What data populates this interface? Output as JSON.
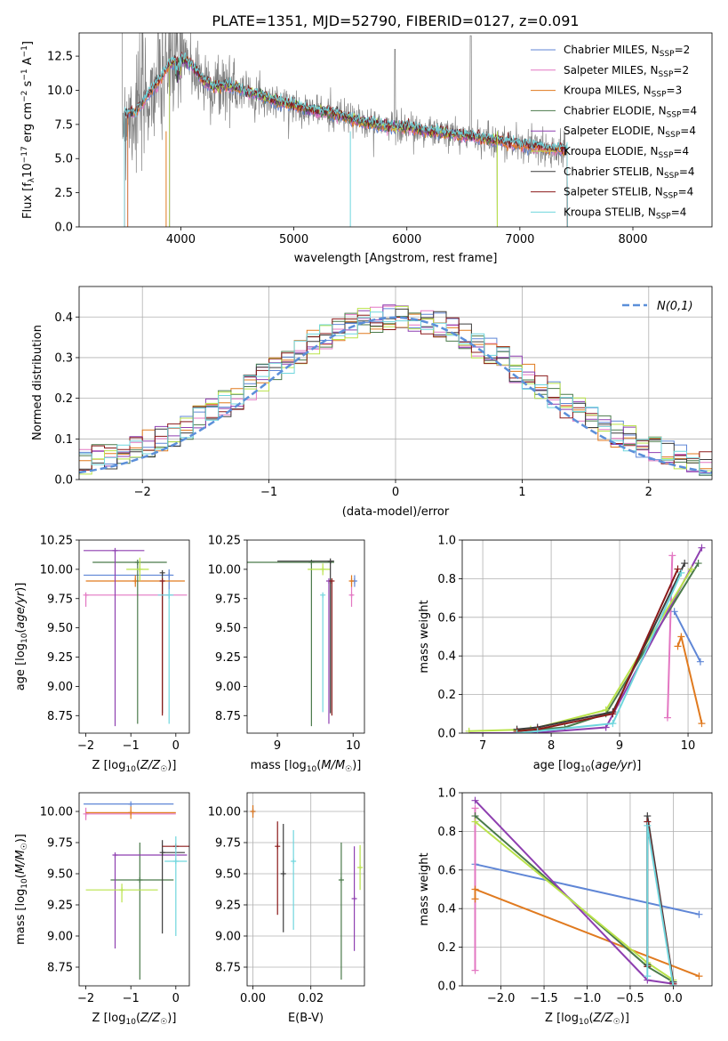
{
  "title": "PLATE=1351, MJD=52790, FIBERID=0127, z=0.091",
  "colors": {
    "Chabrier MILES": "#5f86d6",
    "Salpeter MILES": "#e377c2",
    "Kroupa MILES": "#e07a1f",
    "Chabrier ELODIE": "#4a7a4a",
    "Salpeter ELODIE": "#8e3fb0",
    "Kroupa ELODIE": "#b9e34a",
    "Chabrier STELIB": "#3c3c3c",
    "Salpeter STELIB": "#8b1a1a",
    "Kroupa STELIB": "#6fd6dd",
    "data": "#808080"
  },
  "chart_data": [
    {
      "id": "spectrum",
      "type": "line",
      "title": "PLATE=1351, MJD=52790, FIBERID=0127, z=0.091",
      "xlabel": "wavelength [Angstrom, rest frame]",
      "ylabel": "Flux [f_λ 10^-17 erg cm^-2 s^-1 A^-1]",
      "xlim": [
        3100,
        8700
      ],
      "ylim": [
        0,
        14.2
      ],
      "xticks": [
        4000,
        5000,
        6000,
        7000,
        8000
      ],
      "yticks": [
        0.0,
        2.5,
        5.0,
        7.5,
        10.0,
        12.5
      ],
      "legend_position": "top-right",
      "legend": [
        {
          "label": "Chabrier MILES, N",
          "sub": "SSP",
          "n": "=2"
        },
        {
          "label": "Salpeter MILES, N",
          "sub": "SSP",
          "n": "=2"
        },
        {
          "label": "Kroupa MILES, N",
          "sub": "SSP",
          "n": "=3"
        },
        {
          "label": "Chabrier ELODIE, N",
          "sub": "SSP",
          "n": "=4"
        },
        {
          "label": "Salpeter ELODIE, N",
          "sub": "SSP",
          "n": "=4"
        },
        {
          "label": "Kroupa ELODIE, N",
          "sub": "SSP",
          "n": "=4"
        },
        {
          "label": "Chabrier STELIB, N",
          "sub": "SSP",
          "n": "=4"
        },
        {
          "label": "Salpeter STELIB, N",
          "sub": "SSP",
          "n": "=4"
        },
        {
          "label": "Kroupa STELIB, N",
          "sub": "SSP",
          "n": "=4"
        }
      ],
      "model_continuum": {
        "x": [
          3500,
          3600,
          3700,
          3800,
          3900,
          4000,
          4100,
          4200,
          4300,
          4400,
          4600,
          4800,
          5000,
          5200,
          5400,
          5600,
          5800,
          6000,
          6200,
          6400,
          6600,
          6800,
          7000,
          7200,
          7400
        ],
        "y": [
          8.3,
          8.4,
          9.6,
          10.6,
          11.9,
          12.4,
          11.8,
          10.7,
          10.2,
          10.4,
          9.9,
          9.3,
          8.9,
          8.5,
          8.2,
          7.7,
          7.4,
          7.3,
          7.0,
          6.8,
          6.6,
          6.3,
          6.0,
          5.8,
          5.6
        ]
      },
      "data_range": [
        3480,
        7420
      ],
      "model_ranges": {
        "MILES": [
          3530,
          7420
        ],
        "ELODIE": [
          3900,
          6800
        ],
        "STELIB": [
          3500,
          7420
        ]
      }
    },
    {
      "id": "residuals",
      "type": "histogram",
      "xlabel": "(data-model)/error",
      "ylabel": "Normed distribution",
      "xlim": [
        -2.5,
        2.5
      ],
      "ylim": [
        0,
        0.475
      ],
      "xticks": [
        -2,
        -1,
        0,
        1,
        2
      ],
      "yticks": [
        0.0,
        0.1,
        0.2,
        0.3,
        0.4
      ],
      "grid": true,
      "legend_position": "top-right",
      "reference_label": "N(0,1)",
      "bins": 50,
      "bin_range": [
        -2.5,
        2.5
      ]
    },
    {
      "id": "age-vs-Z",
      "type": "errorbar",
      "xlabel": "Z [log10(Z/Z☉)]",
      "ylabel": "age [log10(age/yr)]",
      "xlim": [
        -2.15,
        0.3
      ],
      "ylim": [
        8.6,
        10.25
      ],
      "xticks": [
        -2,
        -1,
        0
      ],
      "yticks": [
        8.75,
        9.0,
        9.25,
        9.5,
        9.75,
        10.0,
        10.25
      ],
      "points": [
        {
          "model": "Chabrier MILES",
          "x": -0.15,
          "y": 9.95,
          "xerr": [
            1.9,
            0.1
          ],
          "yerr": [
            0.2,
            0.05
          ]
        },
        {
          "model": "Salpeter MILES",
          "x": -2.0,
          "y": 9.78,
          "xerr": [
            0,
            2.25
          ],
          "yerr": [
            0.1,
            0.0
          ]
        },
        {
          "model": "Kroupa MILES",
          "x": -0.9,
          "y": 9.9,
          "xerr": [
            1.1,
            1.1
          ],
          "yerr": [
            0.05,
            0.05
          ]
        },
        {
          "model": "Chabrier ELODIE",
          "x": -0.85,
          "y": 10.06,
          "xerr": [
            1.0,
            0.65
          ],
          "yerr": [
            1.38,
            0.0
          ]
        },
        {
          "model": "Salpeter ELODIE",
          "x": -1.35,
          "y": 10.16,
          "xerr": [
            0.7,
            0.65
          ],
          "yerr": [
            1.5,
            0.0
          ]
        },
        {
          "model": "Kroupa ELODIE",
          "x": -0.8,
          "y": 10.0,
          "xerr": [
            0.3,
            0.2
          ],
          "yerr": [
            0.1,
            0.1
          ]
        },
        {
          "model": "Chabrier STELIB",
          "x": -0.3,
          "y": 9.97,
          "xerr": [
            0,
            0
          ],
          "yerr": [
            1.2,
            0
          ]
        },
        {
          "model": "Salpeter STELIB",
          "x": -0.3,
          "y": 9.9,
          "xerr": [
            0,
            0
          ],
          "yerr": [
            1.15,
            0
          ]
        },
        {
          "model": "Kroupa STELIB",
          "x": -0.15,
          "y": 9.78,
          "xerr": [
            0.25,
            0.1
          ],
          "yerr": [
            1.1,
            0.05
          ]
        }
      ]
    },
    {
      "id": "age-vs-mass",
      "type": "errorbar",
      "xlabel": "mass [log10(M/M☉)]",
      "ylabel": "",
      "xlim": [
        8.6,
        10.15
      ],
      "ylim": [
        8.6,
        10.25
      ],
      "xticks": [
        9,
        10
      ],
      "yticks": [
        8.75,
        9.0,
        9.25,
        9.5,
        9.75,
        10.0,
        10.25
      ],
      "points": [
        {
          "model": "Chabrier MILES",
          "x": 10.02,
          "y": 9.9,
          "xerr": [
            0.05,
            0.02
          ],
          "yerr": [
            0.05,
            0.05
          ]
        },
        {
          "model": "Salpeter MILES",
          "x": 9.98,
          "y": 9.78,
          "xerr": [
            0.02,
            0.02
          ],
          "yerr": [
            0.1,
            0.1
          ]
        },
        {
          "model": "Kroupa MILES",
          "x": 9.98,
          "y": 9.9,
          "xerr": [
            0.02,
            0.02
          ],
          "yerr": [
            0.05,
            0.05
          ]
        },
        {
          "model": "Chabrier ELODIE",
          "x": 9.45,
          "y": 10.06,
          "xerr": [
            0.85,
            0.3
          ],
          "yerr": [
            1.4,
            0.0
          ]
        },
        {
          "model": "Salpeter ELODIE",
          "x": 9.68,
          "y": 9.9,
          "xerr": [
            0.0,
            0.0
          ],
          "yerr": [
            1.22,
            0.0
          ]
        },
        {
          "model": "Kroupa ELODIE",
          "x": 9.6,
          "y": 10.0,
          "xerr": [
            0.2,
            0.1
          ],
          "yerr": [
            0.05,
            0.05
          ]
        },
        {
          "model": "Chabrier STELIB",
          "x": 9.7,
          "y": 10.07,
          "xerr": [
            0.7,
            0.05
          ],
          "yerr": [
            1.3,
            0.0
          ]
        },
        {
          "model": "Salpeter STELIB",
          "x": 9.72,
          "y": 9.9,
          "xerr": [
            0.0,
            0.0
          ],
          "yerr": [
            1.15,
            0.0
          ]
        },
        {
          "model": "Kroupa STELIB",
          "x": 9.6,
          "y": 9.78,
          "xerr": [
            0.0,
            0.0
          ],
          "yerr": [
            1.0,
            0.0
          ]
        }
      ]
    },
    {
      "id": "mass-weight-vs-age",
      "type": "line",
      "xlabel": "age [log10(age/yr)]",
      "ylabel": "mass weight",
      "xlim": [
        6.7,
        10.35
      ],
      "ylim": [
        0,
        1
      ],
      "xticks": [
        7,
        8,
        9,
        10
      ],
      "yticks": [
        0.0,
        0.2,
        0.4,
        0.6,
        0.8,
        1.0
      ],
      "grid": true,
      "series": [
        {
          "name": "Chabrier MILES",
          "x": [
            9.8,
            10.18
          ],
          "y": [
            0.63,
            0.37
          ]
        },
        {
          "name": "Salpeter MILES",
          "x": [
            9.7,
            9.77
          ],
          "y": [
            0.08,
            0.92
          ]
        },
        {
          "name": "Kroupa MILES",
          "x": [
            9.85,
            9.9,
            10.2
          ],
          "y": [
            0.45,
            0.5,
            0.05
          ]
        },
        {
          "name": "Chabrier ELODIE",
          "x": [
            7.5,
            8.2,
            8.8,
            10.15
          ],
          "y": [
            0.01,
            0.03,
            0.1,
            0.88
          ]
        },
        {
          "name": "Salpeter ELODIE",
          "x": [
            6.8,
            7.7,
            8.8,
            10.2
          ],
          "y": [
            0.0,
            0.0,
            0.03,
            0.96
          ]
        },
        {
          "name": "Kroupa ELODIE",
          "x": [
            6.8,
            7.7,
            8.8,
            10.05
          ],
          "y": [
            0.01,
            0.02,
            0.12,
            0.85
          ]
        },
        {
          "name": "Chabrier STELIB",
          "x": [
            7.5,
            7.8,
            8.9,
            9.95
          ],
          "y": [
            0.02,
            0.03,
            0.11,
            0.88
          ]
        },
        {
          "name": "Salpeter STELIB",
          "x": [
            7.5,
            7.8,
            8.9,
            9.85
          ],
          "y": [
            0.01,
            0.02,
            0.1,
            0.85
          ]
        },
        {
          "name": "Kroupa STELIB",
          "x": [
            7.5,
            7.8,
            8.9,
            9.9
          ],
          "y": [
            0.0,
            0.01,
            0.05,
            0.83
          ]
        }
      ]
    },
    {
      "id": "mass-vs-Z",
      "type": "errorbar",
      "xlabel": "Z [log10(Z/Z☉)]",
      "ylabel": "mass [log10(M/M☉)]",
      "xlim": [
        -2.15,
        0.3
      ],
      "ylim": [
        8.6,
        10.15
      ],
      "xticks": [
        -2,
        -1,
        0
      ],
      "yticks": [
        8.75,
        9.0,
        9.25,
        9.5,
        9.75,
        10.0
      ],
      "points": [
        {
          "model": "Chabrier MILES",
          "x": -1.0,
          "y": 10.06,
          "xerr": [
            1.05,
            0.95
          ],
          "yerr": [
            0,
            0
          ]
        },
        {
          "model": "Salpeter MILES",
          "x": -2.0,
          "y": 9.98,
          "xerr": [
            0,
            2.0
          ],
          "yerr": [
            0.05,
            0.05
          ]
        },
        {
          "model": "Kroupa MILES",
          "x": -1.0,
          "y": 9.99,
          "xerr": [
            1.0,
            1.0
          ],
          "yerr": [
            0.05,
            0.05
          ]
        },
        {
          "model": "Chabrier ELODIE",
          "x": -0.8,
          "y": 9.45,
          "xerr": [
            0.65,
            0.75
          ],
          "yerr": [
            0.8,
            0.3
          ]
        },
        {
          "model": "Salpeter ELODIE",
          "x": -1.35,
          "y": 9.65,
          "xerr": [
            0,
            1.6
          ],
          "yerr": [
            0.75,
            0
          ]
        },
        {
          "model": "Kroupa ELODIE",
          "x": -1.2,
          "y": 9.37,
          "xerr": [
            0.8,
            0.8
          ],
          "yerr": [
            0.1,
            0.05
          ]
        },
        {
          "model": "Chabrier STELIB",
          "x": -0.3,
          "y": 9.67,
          "xerr": [
            0,
            0.5
          ],
          "yerr": [
            0.65,
            0.1
          ]
        },
        {
          "model": "Salpeter STELIB",
          "x": 0.0,
          "y": 9.72,
          "xerr": [
            0.3,
            0.3
          ],
          "yerr": [
            0,
            0
          ]
        },
        {
          "model": "Kroupa STELIB",
          "x": 0.0,
          "y": 9.6,
          "xerr": [
            0.25,
            0.25
          ],
          "yerr": [
            0.6,
            0.2
          ]
        }
      ]
    },
    {
      "id": "mass-vs-EBV",
      "type": "errorbar",
      "xlabel": "E(B-V)",
      "ylabel": "",
      "xlim": [
        -0.002,
        0.0385
      ],
      "ylim": [
        8.6,
        10.15
      ],
      "xticks": [
        0.0,
        0.02
      ],
      "yticks": [
        8.75,
        9.0,
        9.25,
        9.5,
        9.75,
        10.0
      ],
      "grid": true,
      "points": [
        {
          "model": "Chabrier MILES",
          "x": 0.0,
          "y": 10.0,
          "xerr": [
            0,
            0
          ],
          "yerr": [
            0.05,
            0.05
          ]
        },
        {
          "model": "Kroupa MILES",
          "x": 0.0,
          "y": 10.0,
          "xerr": [
            0,
            0
          ],
          "yerr": [
            0.05,
            0.05
          ]
        },
        {
          "model": "Salpeter STELIB",
          "x": 0.0085,
          "y": 9.72,
          "xerr": [
            0,
            0
          ],
          "yerr": [
            0.55,
            0.2
          ]
        },
        {
          "model": "Chabrier STELIB",
          "x": 0.0105,
          "y": 9.5,
          "xerr": [
            0,
            0
          ],
          "yerr": [
            0.47,
            0.4
          ]
        },
        {
          "model": "Kroupa STELIB",
          "x": 0.014,
          "y": 9.6,
          "xerr": [
            0,
            0
          ],
          "yerr": [
            0.55,
            0.25
          ]
        },
        {
          "model": "Chabrier ELODIE",
          "x": 0.0305,
          "y": 9.45,
          "xerr": [
            0,
            0
          ],
          "yerr": [
            0.8,
            0.3
          ]
        },
        {
          "model": "Salpeter ELODIE",
          "x": 0.035,
          "y": 9.3,
          "xerr": [
            0,
            0
          ],
          "yerr": [
            0.42,
            0.42
          ]
        },
        {
          "model": "Kroupa ELODIE",
          "x": 0.037,
          "y": 9.55,
          "xerr": [
            0,
            0
          ],
          "yerr": [
            0.18,
            0.18
          ]
        }
      ]
    },
    {
      "id": "mass-weight-vs-Z",
      "type": "line",
      "xlabel": "Z [log10(Z/Z☉)]",
      "ylabel": "mass weight",
      "xlim": [
        -2.45,
        0.45
      ],
      "ylim": [
        0,
        1
      ],
      "xticks": [
        -2.0,
        -1.5,
        -1.0,
        -0.5,
        0.0
      ],
      "yticks": [
        0.0,
        0.2,
        0.4,
        0.6,
        0.8,
        1.0
      ],
      "grid": true,
      "series": [
        {
          "name": "Chabrier MILES",
          "x": [
            -2.3,
            0.3
          ],
          "y": [
            0.63,
            0.37
          ]
        },
        {
          "name": "Salpeter MILES",
          "x": [
            -2.3,
            -2.3
          ],
          "y": [
            0.08,
            0.92
          ]
        },
        {
          "name": "Kroupa MILES",
          "x": [
            -2.3,
            -2.3,
            0.3
          ],
          "y": [
            0.45,
            0.5,
            0.05
          ]
        },
        {
          "name": "Chabrier ELODIE",
          "x": [
            -2.3,
            -0.3,
            0.0
          ],
          "y": [
            0.88,
            0.1,
            0.02
          ]
        },
        {
          "name": "Salpeter ELODIE",
          "x": [
            -2.3,
            -0.3,
            0.0
          ],
          "y": [
            0.96,
            0.03,
            0.01
          ]
        },
        {
          "name": "Kroupa ELODIE",
          "x": [
            -2.3,
            -0.3,
            0.0
          ],
          "y": [
            0.85,
            0.12,
            0.03
          ]
        },
        {
          "name": "Chabrier STELIB",
          "x": [
            -0.3,
            -0.3,
            0.0
          ],
          "y": [
            0.11,
            0.88,
            0.02
          ]
        },
        {
          "name": "Salpeter STELIB",
          "x": [
            -0.3,
            -0.3,
            0.0
          ],
          "y": [
            0.1,
            0.85,
            0.01
          ]
        },
        {
          "name": "Kroupa STELIB",
          "x": [
            -0.3,
            -0.3,
            0.0
          ],
          "y": [
            0.05,
            0.83,
            0.0
          ]
        }
      ]
    }
  ]
}
